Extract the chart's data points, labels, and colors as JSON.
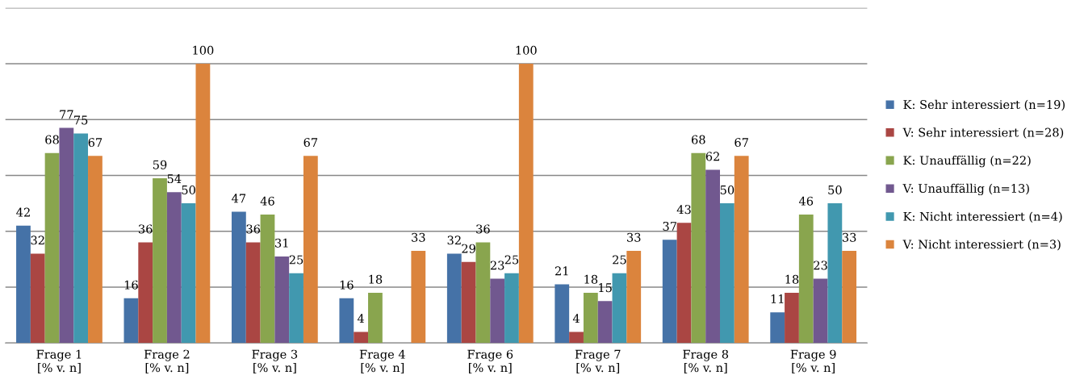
{
  "chart_data": {
    "type": "bar",
    "categories": [
      "Frage 1\n[% v. n]",
      "Frage 2\n[% v. n]",
      "Frage 3\n[% v. n]",
      "Frage 4\n[% v. n]",
      "Frage 6\n[% v. n]",
      "Frage 7\n[% v. n]",
      "Frage 8\n[% v. n]",
      "Frage 9\n[% v. n]"
    ],
    "series": [
      {
        "name": "K: Sehr interessiert (n=19)",
        "color": "#4572a7",
        "values": [
          42,
          16,
          47,
          16,
          32,
          21,
          37,
          11
        ]
      },
      {
        "name": "V: Sehr interessiert (n=28)",
        "color": "#aa4643",
        "values": [
          32,
          36,
          36,
          4,
          29,
          4,
          43,
          18
        ]
      },
      {
        "name": "K: Unauffällig (n=22)",
        "color": "#89a54e",
        "values": [
          68,
          59,
          46,
          18,
          36,
          18,
          68,
          46
        ]
      },
      {
        "name": "V: Unauffällig (n=13)",
        "color": "#71588f",
        "values": [
          77,
          54,
          31,
          null,
          23,
          15,
          62,
          23
        ]
      },
      {
        "name": "K: Nicht interessiert (n=4)",
        "color": "#4198af",
        "values": [
          75,
          50,
          25,
          null,
          25,
          25,
          50,
          50
        ]
      },
      {
        "name": "V: Nicht interessiert (n=3)",
        "color": "#db843d",
        "values": [
          67,
          100,
          67,
          33,
          100,
          33,
          67,
          33
        ]
      }
    ],
    "ylim": [
      0,
      120
    ],
    "yticks": [
      {
        "value": 0,
        "label": null
      },
      {
        "value": 20,
        "label": null
      },
      {
        "value": 40,
        "label": null
      },
      {
        "value": 60,
        "label": null
      },
      {
        "value": 80,
        "label": null
      },
      {
        "value": 100,
        "label": null
      },
      {
        "value": 120,
        "label": null
      }
    ],
    "grid": "y",
    "legend": "right",
    "data_labels": true
  }
}
